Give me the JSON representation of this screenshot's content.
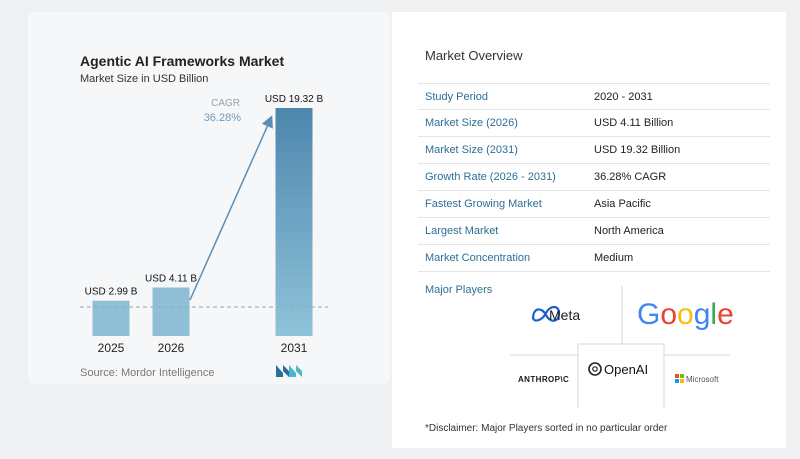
{
  "chart_data": {
    "type": "bar",
    "title": "Agentic AI Frameworks Market",
    "subtitle": "Market Size in USD Billion",
    "categories": [
      "2025",
      "2026",
      "2031"
    ],
    "values": [
      2.99,
      4.11,
      19.32
    ],
    "data_labels": [
      "USD 2.99 B",
      "USD 4.11 B",
      "USD 19.32 B"
    ],
    "cagr_label": "CAGR",
    "cagr_value": "36.28%",
    "ylim": [
      0,
      20
    ],
    "grid": false,
    "colors": {
      "bar_light": "#8fbfd6",
      "bar_dark": "#4e86ad",
      "arrow": "#5a8db5"
    }
  },
  "source": "Source: Mordor Intelligence",
  "logo_icon": "mordor-intelligence-logo",
  "overview": {
    "title": "Market Overview",
    "rows": [
      {
        "label": "Study Period",
        "value": "2020 - 2031"
      },
      {
        "label": "Market Size (2026)",
        "value": "USD 4.11 Billion"
      },
      {
        "label": "Market Size (2031)",
        "value": "USD 19.32 Billion"
      },
      {
        "label": "Growth Rate (2026 - 2031)",
        "value": "36.28% CAGR"
      },
      {
        "label": "Fastest Growing Market",
        "value": "Asia Pacific"
      },
      {
        "label": "Largest Market",
        "value": "North America"
      },
      {
        "label": "Market Concentration",
        "value": "Medium"
      }
    ]
  },
  "players": {
    "label": "Major Players",
    "names": [
      "Meta",
      "Google",
      "ANTHROP\\C",
      "OpenAI",
      "Microsoft"
    ]
  },
  "disclaimer": "*Disclaimer: Major Players sorted in no particular order"
}
